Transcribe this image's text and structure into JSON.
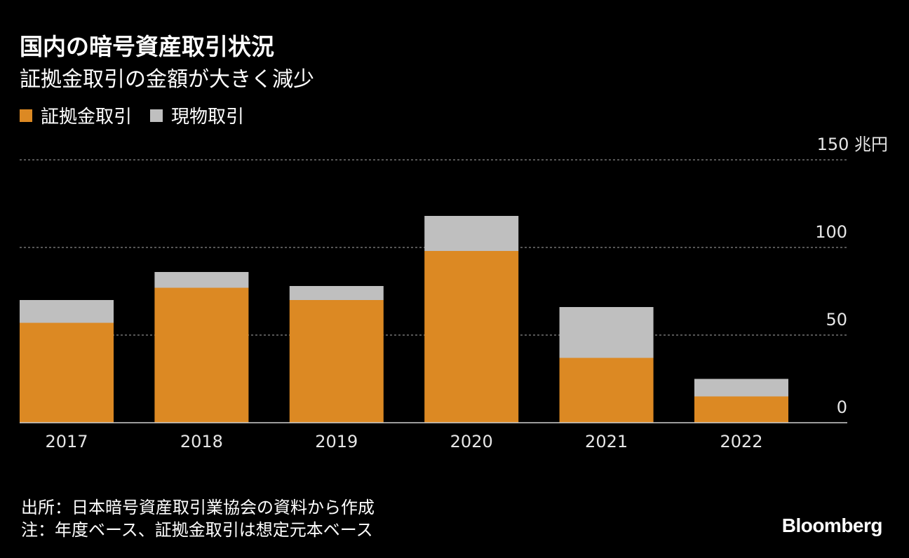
{
  "header": {
    "title": "国内の暗号資産取引状況",
    "subtitle": "証拠金取引の金額が大きく減少"
  },
  "legend": {
    "items": [
      {
        "label": "証拠金取引",
        "color": "#dc8923"
      },
      {
        "label": "現物取引",
        "color": "#bfbfbf"
      }
    ]
  },
  "chart_data": {
    "type": "bar",
    "stacked": true,
    "categories": [
      "2017",
      "2018",
      "2019",
      "2020",
      "2021",
      "2022"
    ],
    "series": [
      {
        "name": "証拠金取引",
        "color": "#dc8923",
        "values": [
          57,
          77,
          70,
          98,
          37,
          15
        ]
      },
      {
        "name": "現物取引",
        "color": "#bfbfbf",
        "values": [
          13,
          9,
          8,
          20,
          29,
          10
        ]
      }
    ],
    "ylim": [
      0,
      150
    ],
    "yticks": [
      0,
      50,
      100,
      150
    ],
    "ytick_labels": [
      "0",
      "50",
      "100",
      "150"
    ],
    "yunit": "兆円",
    "grid": true
  },
  "footer": {
    "source": "出所：日本暗号資産取引業協会の資料から作成",
    "note": "注：年度ベース、証拠金取引は想定元本ベース"
  },
  "brand": "Bloomberg"
}
